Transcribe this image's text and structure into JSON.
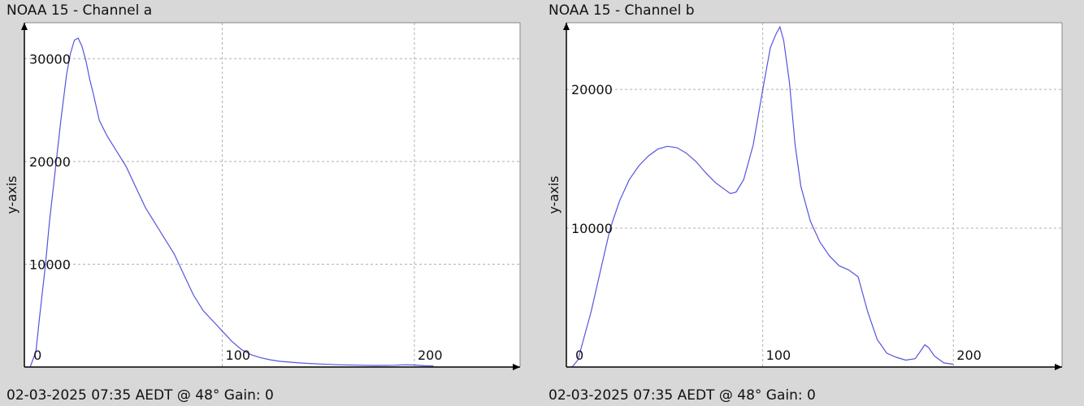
{
  "colors": {
    "background": "#d8d8d8",
    "plot_area": "#ffffff",
    "grid": "#b0b0b0",
    "line": "#5555dd",
    "axis": "#000000"
  },
  "panels": [
    {
      "title": "NOAA 15 - Channel a",
      "footer": "02-03-2025 07:35 AEDT @ 48° Gain: 0",
      "ylabel": "y-axis"
    },
    {
      "title": "NOAA 15 - Channel b",
      "footer": "02-03-2025 07:35 AEDT @ 48° Gain: 0",
      "ylabel": "y-axis"
    }
  ],
  "chart_data": [
    {
      "type": "line",
      "title": "NOAA 15 - Channel a",
      "xlabel": "",
      "ylabel": "y-axis",
      "xlim": [
        -3,
        255
      ],
      "ylim": [
        0,
        33500
      ],
      "x_ticks": [
        0,
        100,
        200
      ],
      "y_ticks": [
        10000,
        20000,
        30000
      ],
      "grid": true,
      "series": [
        {
          "x": [
            0,
            3,
            5,
            8,
            10,
            13,
            16,
            19,
            21,
            23,
            25,
            27,
            29,
            31,
            33,
            36,
            40,
            45,
            50,
            55,
            60,
            65,
            70,
            75,
            80,
            85,
            90,
            95,
            100,
            105,
            110,
            115,
            120,
            125,
            130,
            140,
            150,
            160,
            170,
            180,
            190,
            195,
            200,
            205,
            210
          ],
          "y": [
            0,
            1500,
            5000,
            10000,
            14000,
            19000,
            24000,
            28500,
            30500,
            31800,
            32000,
            31200,
            29800,
            28000,
            26500,
            24000,
            22500,
            21000,
            19500,
            17500,
            15500,
            14000,
            12500,
            11000,
            9000,
            7000,
            5500,
            4500,
            3500,
            2500,
            1700,
            1200,
            900,
            700,
            550,
            400,
            300,
            220,
            180,
            150,
            170,
            220,
            200,
            130,
            100
          ]
        }
      ]
    },
    {
      "type": "line",
      "title": "NOAA 15 - Channel b",
      "xlabel": "",
      "ylabel": "y-axis",
      "xlim": [
        -3,
        257
      ],
      "ylim": [
        0,
        24800
      ],
      "x_ticks": [
        0,
        100,
        200
      ],
      "y_ticks": [
        10000,
        20000
      ],
      "grid": true,
      "series": [
        {
          "x": [
            0,
            3,
            5,
            10,
            15,
            20,
            25,
            30,
            35,
            40,
            45,
            50,
            55,
            60,
            65,
            70,
            75,
            80,
            83,
            86,
            90,
            95,
            100,
            104,
            107,
            109,
            111,
            114,
            117,
            120,
            125,
            130,
            135,
            140,
            145,
            150,
            155,
            160,
            165,
            170,
            175,
            180,
            183,
            185,
            187,
            190,
            195,
            200
          ],
          "y": [
            0,
            500,
            1500,
            4000,
            7000,
            10000,
            12000,
            13500,
            14500,
            15200,
            15700,
            15900,
            15800,
            15400,
            14800,
            14000,
            13300,
            12800,
            12500,
            12600,
            13500,
            16000,
            20000,
            23000,
            24000,
            24500,
            23500,
            20500,
            16000,
            13000,
            10500,
            9000,
            8000,
            7300,
            7000,
            6500,
            4000,
            2000,
            1000,
            700,
            500,
            600,
            1200,
            1600,
            1400,
            800,
            300,
            200
          ]
        }
      ]
    }
  ]
}
